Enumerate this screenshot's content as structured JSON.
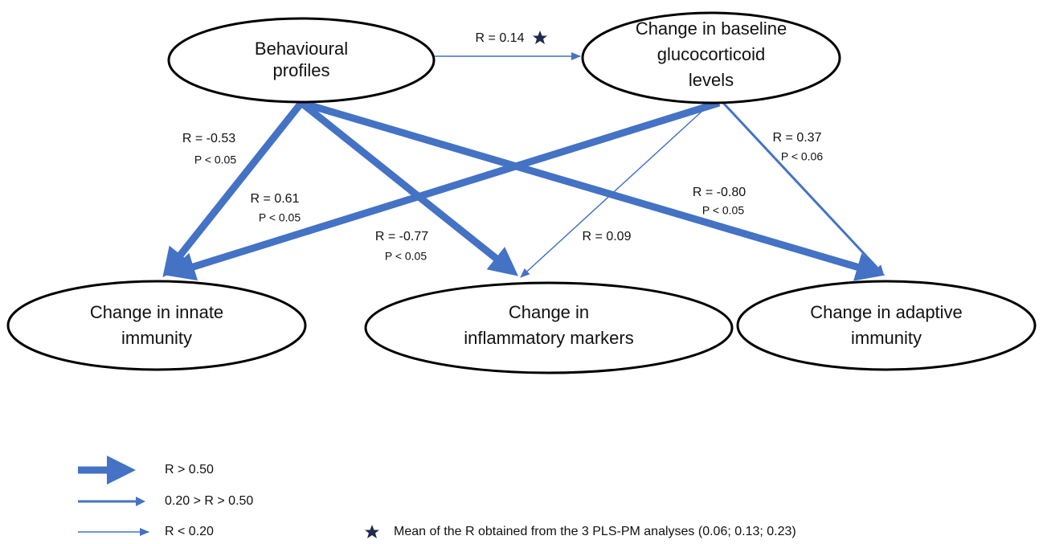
{
  "nodes": [
    {
      "label": [
        "Behavioural",
        "profiles"
      ]
    },
    {
      "label": [
        "Change in baseline",
        "glucocorticoid",
        "levels"
      ]
    },
    {
      "label": [
        "Change in innate",
        "immunity"
      ]
    },
    {
      "label": [
        "Change in",
        "inflammatory markers"
      ]
    },
    {
      "label": [
        "Change in adaptive",
        "immunity"
      ]
    }
  ],
  "edges": [
    {
      "r": "R = 0.14"
    },
    {
      "r": "R = -0.53",
      "p": "P < 0.05"
    },
    {
      "r": "R = 0.61",
      "p": "P < 0.05"
    },
    {
      "r": "R = -0.77",
      "p": "P < 0.05"
    },
    {
      "r": "R = 0.09"
    },
    {
      "r": "R = -0.80",
      "p": "P < 0.05"
    },
    {
      "r": "R = 0.37",
      "p": "P < 0.06"
    }
  ],
  "legend": {
    "items": [
      "R > 0.50",
      "0.20 > R > 0.50",
      "R < 0.20"
    ],
    "note": "Mean of the R obtained from the 3 PLS-PM analyses (0.06; 0.13; 0.23)"
  }
}
